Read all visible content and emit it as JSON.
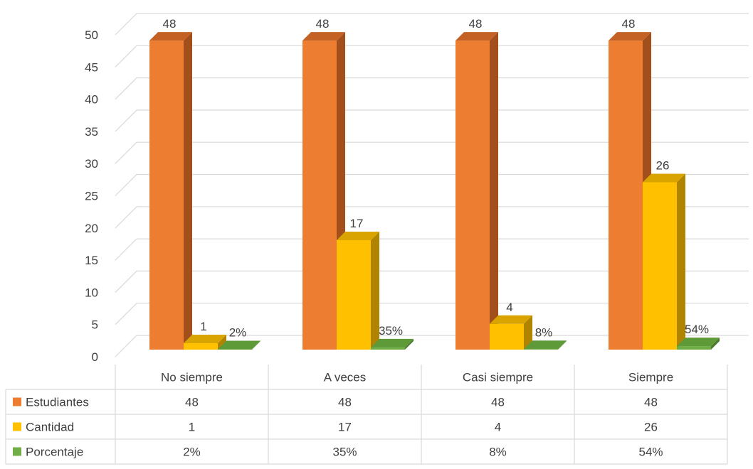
{
  "chart_data": {
    "type": "bar",
    "title": "",
    "xlabel": "",
    "ylabel": "",
    "ylim": [
      0,
      50
    ],
    "yticks": [
      "0",
      "5",
      "10",
      "15",
      "20",
      "25",
      "30",
      "35",
      "40",
      "45",
      "50"
    ],
    "categories": [
      "No siempre",
      "A veces",
      "Casi siempre",
      "Siempre"
    ],
    "grid": true,
    "legend": "data-table",
    "series": [
      {
        "name": "Estudiantes",
        "values": [
          48,
          48,
          48,
          48
        ],
        "labels": [
          "48",
          "48",
          "48",
          "48"
        ],
        "color": "#ED7D31",
        "dark": "#A34F1C",
        "top": "#C46225"
      },
      {
        "name": "Cantidad",
        "values": [
          1,
          17,
          4,
          26
        ],
        "labels": [
          "1",
          "17",
          "4",
          "26"
        ],
        "color": "#FFC000",
        "dark": "#B08400",
        "top": "#D9A300"
      },
      {
        "name": "Porcentaje",
        "values": [
          0.02,
          0.35,
          0.08,
          0.54
        ],
        "labels": [
          "2%",
          "35%",
          "8%",
          "54%"
        ],
        "color": "#70AD47",
        "dark": "#4B7A2E",
        "top": "#5E9A38"
      }
    ]
  }
}
